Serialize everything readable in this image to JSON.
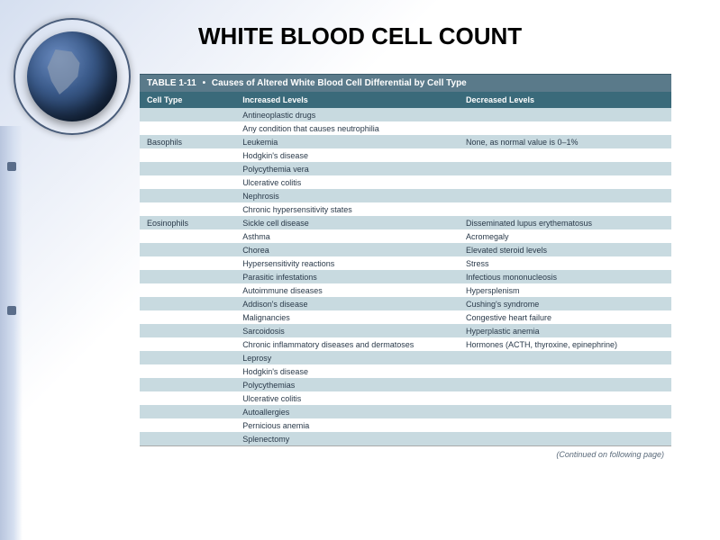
{
  "title": "WHITE BLOOD CELL COUNT",
  "table": {
    "caption_label": "TABLE 1-11",
    "caption_title": "Causes of Altered White Blood Cell Differential by Cell Type",
    "columns": [
      "Cell Type",
      "Increased Levels",
      "Decreased Levels"
    ],
    "rows": [
      {
        "cell_type": "",
        "increased": "Antineoplastic drugs",
        "decreased": ""
      },
      {
        "cell_type": "",
        "increased": "Any condition that causes neutrophilia",
        "decreased": ""
      },
      {
        "cell_type": "Basophils",
        "increased": "Leukemia",
        "decreased": "None, as normal value is 0–1%"
      },
      {
        "cell_type": "",
        "increased": "Hodgkin's disease",
        "decreased": ""
      },
      {
        "cell_type": "",
        "increased": "Polycythemia vera",
        "decreased": ""
      },
      {
        "cell_type": "",
        "increased": "Ulcerative colitis",
        "decreased": ""
      },
      {
        "cell_type": "",
        "increased": "Nephrosis",
        "decreased": ""
      },
      {
        "cell_type": "",
        "increased": "Chronic hypersensitivity states",
        "decreased": ""
      },
      {
        "cell_type": "Eosinophils",
        "increased": "Sickle cell disease",
        "decreased": "Disseminated lupus erythematosus"
      },
      {
        "cell_type": "",
        "increased": "Asthma",
        "decreased": "Acromegaly"
      },
      {
        "cell_type": "",
        "increased": "Chorea",
        "decreased": "Elevated steroid levels"
      },
      {
        "cell_type": "",
        "increased": "Hypersensitivity reactions",
        "decreased": "Stress"
      },
      {
        "cell_type": "",
        "increased": "Parasitic infestations",
        "decreased": "Infectious mononucleosis"
      },
      {
        "cell_type": "",
        "increased": "Autoimmune diseases",
        "decreased": "Hypersplenism"
      },
      {
        "cell_type": "",
        "increased": "Addison's disease",
        "decreased": "Cushing's syndrome"
      },
      {
        "cell_type": "",
        "increased": "Malignancies",
        "decreased": "Congestive heart failure"
      },
      {
        "cell_type": "",
        "increased": "Sarcoidosis",
        "decreased": "Hyperplastic anemia"
      },
      {
        "cell_type": "",
        "increased": "Chronic inflammatory diseases and dermatoses",
        "decreased": "Hormones (ACTH, thyroxine, epinephrine)"
      },
      {
        "cell_type": "",
        "increased": "Leprosy",
        "decreased": ""
      },
      {
        "cell_type": "",
        "increased": "Hodgkin's disease",
        "decreased": ""
      },
      {
        "cell_type": "",
        "increased": "Polycythemias",
        "decreased": ""
      },
      {
        "cell_type": "",
        "increased": "Ulcerative colitis",
        "decreased": ""
      },
      {
        "cell_type": "",
        "increased": "Autoallergies",
        "decreased": ""
      },
      {
        "cell_type": "",
        "increased": "Pernicious anemia",
        "decreased": ""
      },
      {
        "cell_type": "",
        "increased": "Splenectomy",
        "decreased": ""
      }
    ],
    "continued_text": "(Continued on following page)"
  },
  "colors": {
    "header_bg": "#3a6a7a",
    "caption_bg": "#5a7a8a",
    "stripe_a": "#c8dae0",
    "stripe_b": "#ffffff",
    "text": "#2a3a4a"
  }
}
